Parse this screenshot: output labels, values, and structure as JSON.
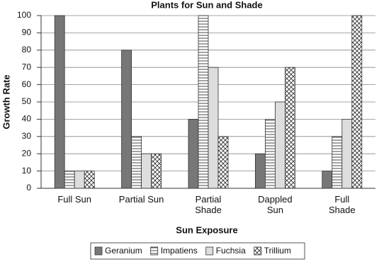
{
  "chart_data": {
    "type": "bar",
    "title": "Plants for Sun and Shade",
    "x_label": "Sun Exposure",
    "y_label": "Growth Rate",
    "categories": [
      "Full Sun",
      "Partial Sun",
      "Partial\nShade",
      "Dappled\nSun",
      "Full\nShade"
    ],
    "series": [
      {
        "name": "Geranium",
        "color": "#777777",
        "pattern": "solid",
        "values": [
          100,
          80,
          40,
          20,
          10
        ]
      },
      {
        "name": "Impatiens",
        "color": "#ffffff",
        "pattern": "horizontal",
        "values": [
          10,
          30,
          100,
          40,
          30
        ]
      },
      {
        "name": "Fuchsia",
        "color": "#dddddd",
        "pattern": "solid",
        "values": [
          10,
          20,
          70,
          50,
          40
        ]
      },
      {
        "name": "Trillium",
        "color": "#ffffff",
        "pattern": "crosshatch",
        "values": [
          10,
          20,
          30,
          70,
          100
        ]
      }
    ],
    "ylim": [
      0,
      100
    ],
    "yticks": [
      0,
      10,
      20,
      30,
      40,
      50,
      60,
      70,
      80,
      90,
      100
    ],
    "grid": true,
    "legend": "bottom"
  }
}
